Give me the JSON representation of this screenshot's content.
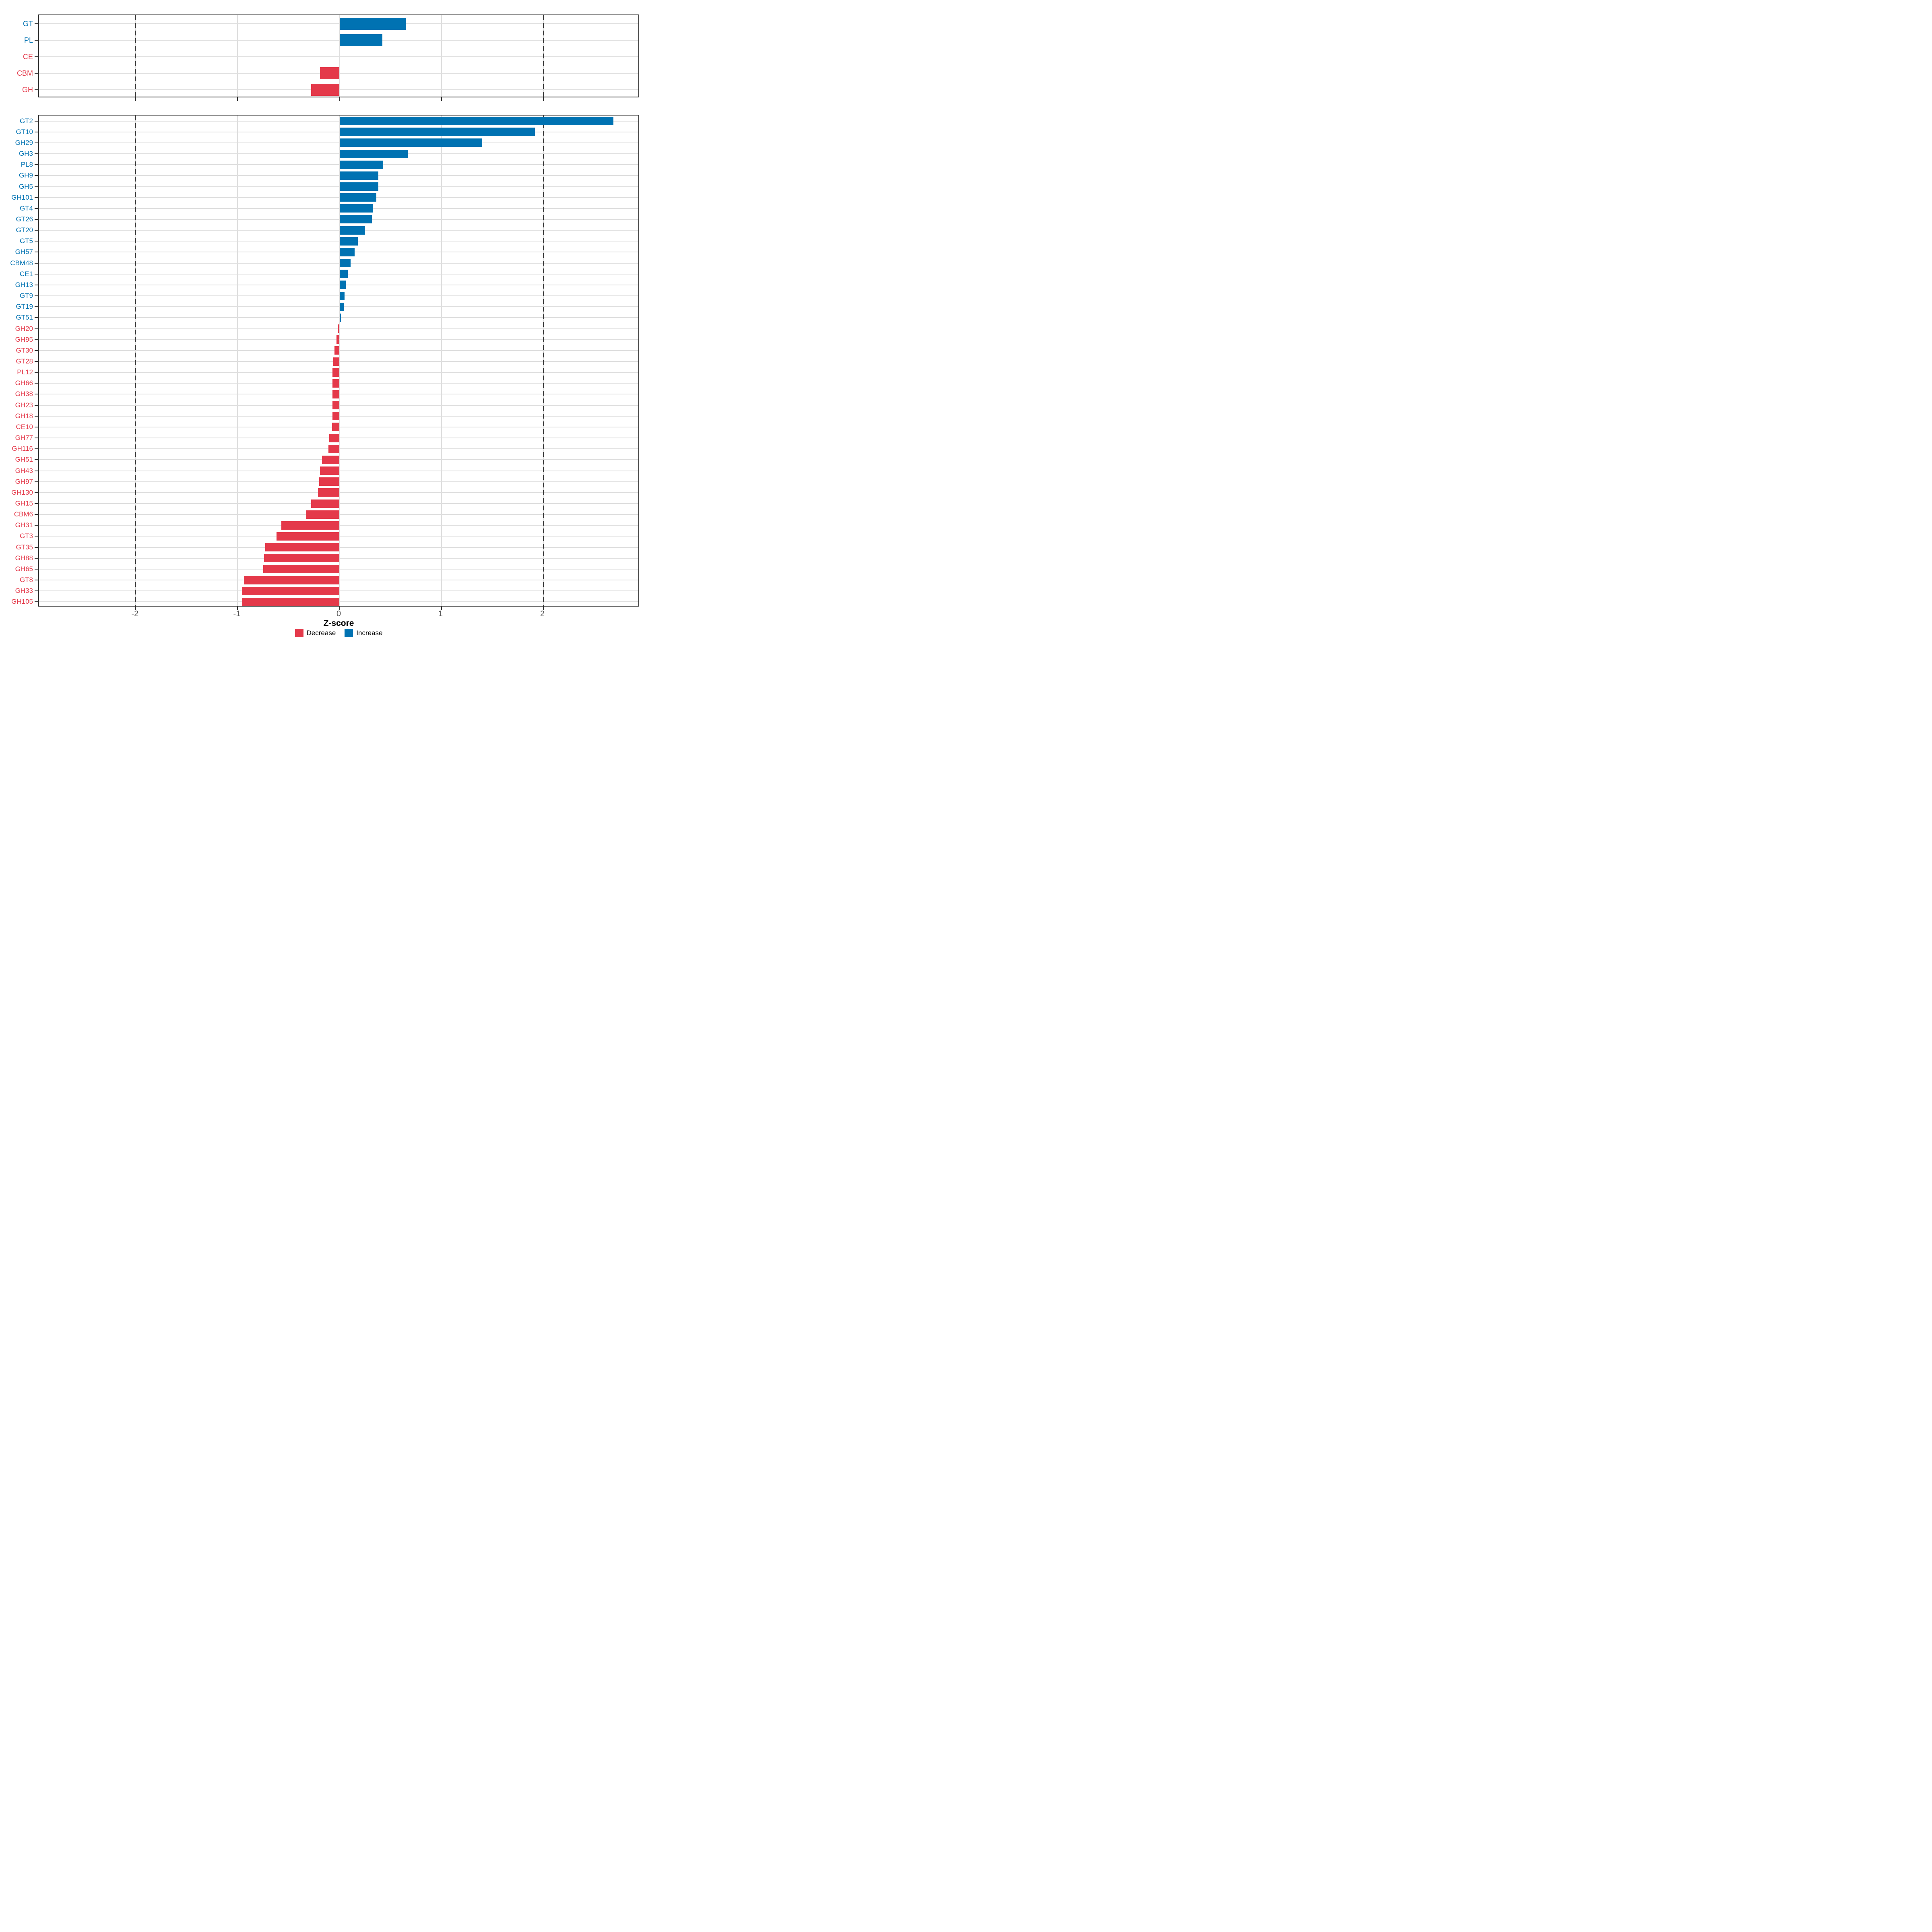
{
  "chart_data": {
    "type": "bar",
    "orientation": "horizontal",
    "title": "",
    "xlabel": "Z-score",
    "x_ticks": [
      -2,
      -1,
      0,
      1,
      2
    ],
    "x_domain": [
      -2.95,
      2.95
    ],
    "reference_lines": [
      -2,
      2
    ],
    "grid": true,
    "legend_position": "bottom",
    "colors": {
      "increase": "#0072B2",
      "decrease": "#E4394A"
    },
    "legend": [
      {
        "key": "decrease",
        "label": "Decrease",
        "color": "#E4394A"
      },
      {
        "key": "increase",
        "label": "Increase",
        "color": "#0072B2"
      }
    ],
    "panels": [
      {
        "name": "cazyme_classes",
        "items": [
          {
            "label": "GT",
            "value": 0.65,
            "direction": "increase"
          },
          {
            "label": "PL",
            "value": 0.42,
            "direction": "increase"
          },
          {
            "label": "CE",
            "value": 0.0,
            "direction": "decrease"
          },
          {
            "label": "CBM",
            "value": -0.19,
            "direction": "decrease"
          },
          {
            "label": "GH",
            "value": -0.28,
            "direction": "decrease"
          }
        ]
      },
      {
        "name": "cazyme_families",
        "items": [
          {
            "label": "GT2",
            "value": 2.69,
            "direction": "increase"
          },
          {
            "label": "GT10",
            "value": 1.92,
            "direction": "increase"
          },
          {
            "label": "GH29",
            "value": 1.4,
            "direction": "increase"
          },
          {
            "label": "GH3",
            "value": 0.67,
            "direction": "increase"
          },
          {
            "label": "PL8",
            "value": 0.43,
            "direction": "increase"
          },
          {
            "label": "GH9",
            "value": 0.38,
            "direction": "increase"
          },
          {
            "label": "GH5",
            "value": 0.38,
            "direction": "increase"
          },
          {
            "label": "GH101",
            "value": 0.36,
            "direction": "increase"
          },
          {
            "label": "GT4",
            "value": 0.33,
            "direction": "increase"
          },
          {
            "label": "GT26",
            "value": 0.32,
            "direction": "increase"
          },
          {
            "label": "GT20",
            "value": 0.25,
            "direction": "increase"
          },
          {
            "label": "GT5",
            "value": 0.18,
            "direction": "increase"
          },
          {
            "label": "GH57",
            "value": 0.15,
            "direction": "increase"
          },
          {
            "label": "CBM48",
            "value": 0.11,
            "direction": "increase"
          },
          {
            "label": "CE1",
            "value": 0.08,
            "direction": "increase"
          },
          {
            "label": "GH13",
            "value": 0.06,
            "direction": "increase"
          },
          {
            "label": "GT9",
            "value": 0.05,
            "direction": "increase"
          },
          {
            "label": "GT19",
            "value": 0.04,
            "direction": "increase"
          },
          {
            "label": "GT51",
            "value": 0.015,
            "direction": "increase"
          },
          {
            "label": "GH20",
            "value": -0.015,
            "direction": "decrease"
          },
          {
            "label": "GH95",
            "value": -0.03,
            "direction": "decrease"
          },
          {
            "label": "GT30",
            "value": -0.05,
            "direction": "decrease"
          },
          {
            "label": "GT28",
            "value": -0.06,
            "direction": "decrease"
          },
          {
            "label": "PL12",
            "value": -0.07,
            "direction": "decrease"
          },
          {
            "label": "GH66",
            "value": -0.07,
            "direction": "decrease"
          },
          {
            "label": "GH38",
            "value": -0.07,
            "direction": "decrease"
          },
          {
            "label": "GH23",
            "value": -0.07,
            "direction": "decrease"
          },
          {
            "label": "GH18",
            "value": -0.07,
            "direction": "decrease"
          },
          {
            "label": "CE10",
            "value": -0.075,
            "direction": "decrease"
          },
          {
            "label": "GH77",
            "value": -0.1,
            "direction": "decrease"
          },
          {
            "label": "GH116",
            "value": -0.11,
            "direction": "decrease"
          },
          {
            "label": "GH51",
            "value": -0.17,
            "direction": "decrease"
          },
          {
            "label": "GH43",
            "value": -0.19,
            "direction": "decrease"
          },
          {
            "label": "GH97",
            "value": -0.2,
            "direction": "decrease"
          },
          {
            "label": "GH130",
            "value": -0.21,
            "direction": "decrease"
          },
          {
            "label": "GH15",
            "value": -0.28,
            "direction": "decrease"
          },
          {
            "label": "CBM6",
            "value": -0.33,
            "direction": "decrease"
          },
          {
            "label": "GH31",
            "value": -0.57,
            "direction": "decrease"
          },
          {
            "label": "GT3",
            "value": -0.62,
            "direction": "decrease"
          },
          {
            "label": "GT35",
            "value": -0.73,
            "direction": "decrease"
          },
          {
            "label": "GH88",
            "value": -0.74,
            "direction": "decrease"
          },
          {
            "label": "GH65",
            "value": -0.75,
            "direction": "decrease"
          },
          {
            "label": "GT8",
            "value": -0.94,
            "direction": "decrease"
          },
          {
            "label": "GH33",
            "value": -0.96,
            "direction": "decrease"
          },
          {
            "label": "GH105",
            "value": -0.96,
            "direction": "decrease"
          }
        ]
      }
    ]
  }
}
